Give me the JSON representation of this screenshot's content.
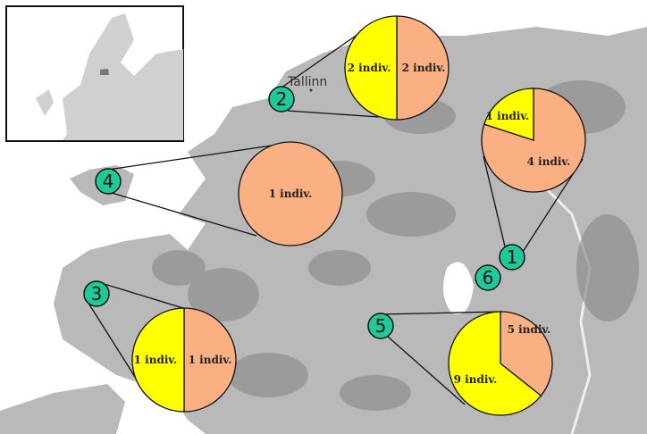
{
  "colors": {
    "yellow": "#ffff00",
    "salmon": "#fbb083",
    "marker": "#1ec99a",
    "land": "#b4b4b4",
    "forest": "#8e8e8e",
    "sea": "#ffffff"
  },
  "city_label": "Tallinn",
  "inset": {
    "highlight": "Estonia"
  },
  "sites": [
    {
      "id": "1",
      "yellow": 1,
      "salmon": 4,
      "yellow_label": "1 indiv.",
      "salmon_label": "4 indiv."
    },
    {
      "id": "2",
      "yellow": 2,
      "salmon": 2,
      "yellow_label": "2 indiv.",
      "salmon_label": "2 indiv."
    },
    {
      "id": "3",
      "yellow": 1,
      "salmon": 1,
      "yellow_label": "1 indiv.",
      "salmon_label": "1 indiv."
    },
    {
      "id": "4",
      "yellow": 0,
      "salmon": 1,
      "yellow_label": "",
      "salmon_label": "1 indiv."
    },
    {
      "id": "5",
      "yellow": 9,
      "salmon": 5,
      "yellow_label": "9 indiv.",
      "salmon_label": "5 indiv."
    },
    {
      "id": "6"
    }
  ]
}
